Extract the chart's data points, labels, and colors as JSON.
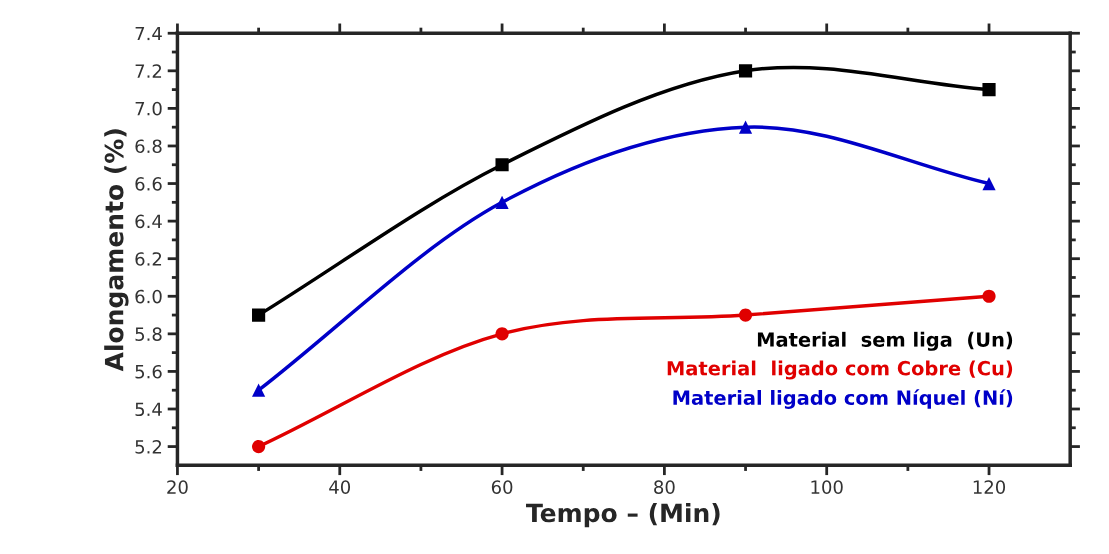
{
  "chart_data": {
    "type": "line",
    "xlabel": "Tempo – (Min)",
    "ylabel": "Alongamento (%)",
    "x": [
      30,
      60,
      90,
      120
    ],
    "series": [
      {
        "name": "Material  sem liga  (Un)",
        "color": "#000000",
        "marker": "square",
        "values": [
          5.9,
          6.7,
          7.2,
          7.1
        ]
      },
      {
        "name": "Material  ligado com Cobre (Cu)",
        "color": "#e00000",
        "marker": "circle",
        "values": [
          5.2,
          5.8,
          5.9,
          6.0
        ]
      },
      {
        "name": "Material ligado com Níquel (Ní)",
        "color": "#0000c8",
        "marker": "triangle",
        "values": [
          5.5,
          6.5,
          6.9,
          6.6
        ]
      }
    ],
    "xlim": [
      20,
      130
    ],
    "xticks": [
      20,
      40,
      60,
      80,
      100,
      120
    ],
    "ylim": [
      5.1,
      7.4
    ],
    "yticks": [
      5.2,
      5.4,
      5.6,
      5.8,
      {
        "value": 6,
        "label": "6.0"
      },
      6.2,
      6.4,
      6.6,
      6.8,
      {
        "value": 7,
        "label": "7.0"
      },
      7.2,
      7.4
    ],
    "grid": false,
    "legend": "bottom right",
    "line_style": "solid"
  }
}
